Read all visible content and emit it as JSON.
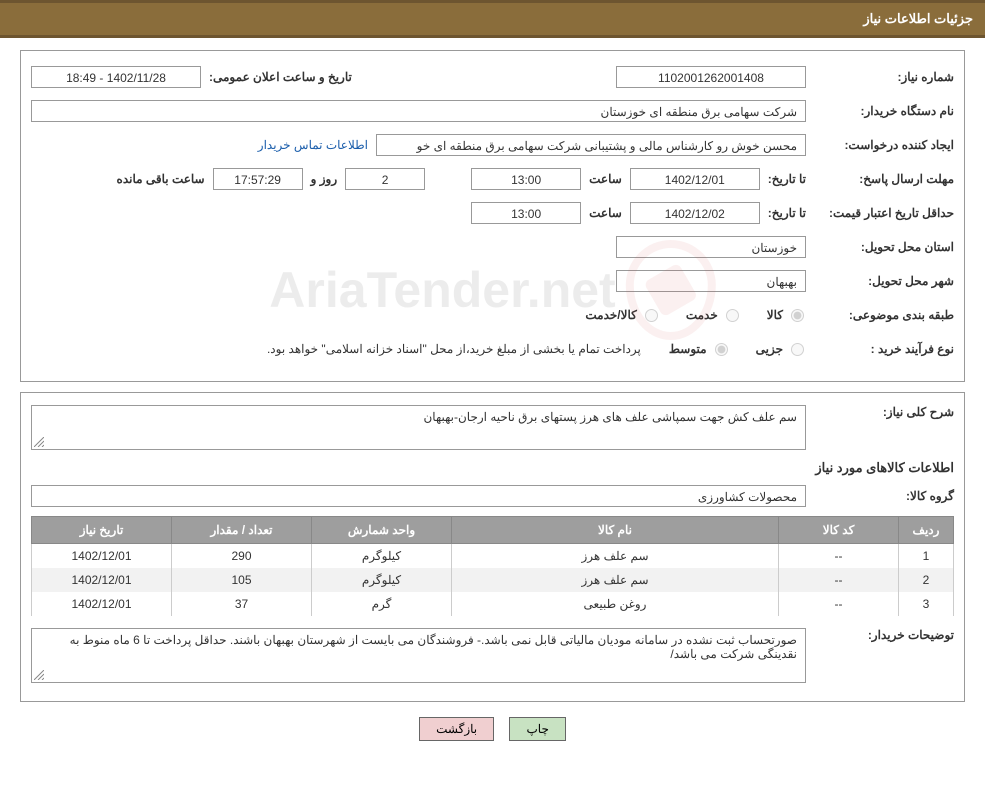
{
  "header": {
    "title": "جزئیات اطلاعات نیاز"
  },
  "fields": {
    "need_number_label": "شماره نیاز:",
    "need_number": "1102001262001408",
    "announce_label": "تاریخ و ساعت اعلان عمومی:",
    "announce_value": "1402/11/28 - 18:49",
    "buyer_org_label": "نام دستگاه خریدار:",
    "buyer_org": "شرکت سهامی برق منطقه ای خوزستان",
    "requester_label": "ایجاد کننده درخواست:",
    "requester": "محسن خوش رو کارشناس مالی و پشتیبانی شرکت سهامی برق منطقه ای خو",
    "contact_link": "اطلاعات تماس خریدار",
    "deadline_label": "مهلت ارسال پاسخ:",
    "until_date_label": "تا تاریخ:",
    "deadline_date": "1402/12/01",
    "time_label": "ساعت",
    "deadline_time": "13:00",
    "days_val": "2",
    "days_and_label": "روز و",
    "countdown": "17:57:29",
    "remaining_label": "ساعت باقی مانده",
    "validity_label": "حداقل تاریخ اعتبار قیمت:",
    "validity_date": "1402/12/02",
    "validity_time": "13:00",
    "province_label": "استان محل تحویل:",
    "province": "خوزستان",
    "city_label": "شهر محل تحویل:",
    "city": "بهبهان",
    "category_label": "طبقه بندی موضوعی:",
    "cat_goods": "کالا",
    "cat_service": "خدمت",
    "cat_goods_service": "کالا/خدمت",
    "purchase_type_label": "نوع فرآیند خرید :",
    "pt_partial": "جزیی",
    "pt_medium": "متوسط",
    "purchase_note": "پرداخت تمام یا بخشی از مبلغ خرید،از محل \"اسناد خزانه اسلامی\" خواهد بود."
  },
  "lower": {
    "need_desc_label": "شرح کلی نیاز:",
    "need_desc": "سم علف کش جهت سمپاشی علف های هرز پستهای برق ناحیه ارجان-بهبهان",
    "goods_info_title": "اطلاعات کالاهای مورد نیاز",
    "goods_group_label": "گروه کالا:",
    "goods_group": "محصولات کشاورزی",
    "table": {
      "columns": [
        "ردیف",
        "کد کالا",
        "نام کالا",
        "واحد شمارش",
        "تعداد / مقدار",
        "تاریخ نیاز"
      ],
      "rows": [
        [
          "1",
          "--",
          "سم علف هرز",
          "کیلوگرم",
          "290",
          "1402/12/01"
        ],
        [
          "2",
          "--",
          "سم علف هرز",
          "کیلوگرم",
          "105",
          "1402/12/01"
        ],
        [
          "3",
          "--",
          "روغن طبیعی",
          "گرم",
          "37",
          "1402/12/01"
        ]
      ]
    },
    "buyer_notes_label": "توضیحات خریدار:",
    "buyer_notes": "صورتحساب ثبت نشده در سامانه مودیان مالیاتی قابل نمی باشد.- فروشندگان می بایست از شهرستان بهبهان باشند. حداقل پرداخت تا 6 ماه منوط به نقدینگی شرکت می باشد/"
  },
  "buttons": {
    "print": "چاپ",
    "back": "بازگشت"
  },
  "watermark": {
    "text": "AriaTender.net"
  },
  "colors": {
    "header_bg": "#8a6d3b",
    "header_border": "#6d5530",
    "table_header_bg": "#9e9e9e",
    "link": "#1a5dab",
    "btn_print": "#c8e2c2",
    "btn_back": "#f0cfd0"
  }
}
